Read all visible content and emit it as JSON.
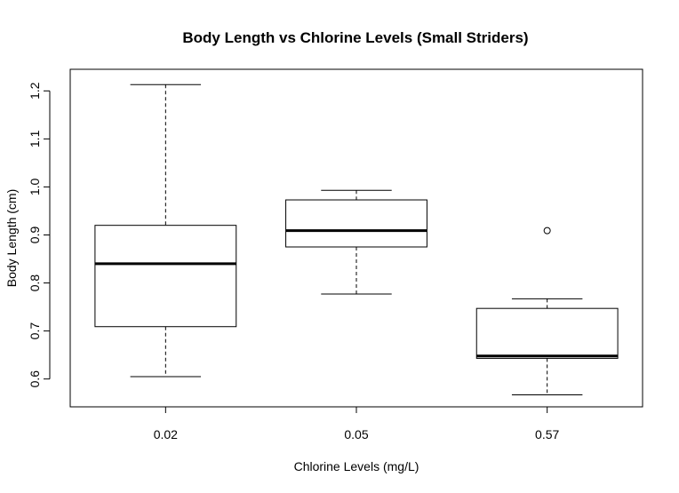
{
  "chart_data": {
    "type": "box",
    "title": "Body Length vs Chlorine Levels (Small Striders)",
    "xlabel": "Chlorine Levels (mg/L)",
    "ylabel": "Body Length (cm)",
    "categories": [
      "0.02",
      "0.05",
      "0.57"
    ],
    "y_ticks": [
      0.6,
      0.7,
      0.8,
      0.9,
      1.0,
      1.1,
      1.2
    ],
    "y_tick_labels": [
      "0.6",
      "0.7",
      "0.8",
      "0.9",
      "1.0",
      "1.1",
      "1.2"
    ],
    "ylim": [
      0.542,
      1.245
    ],
    "boxes": [
      {
        "category": "0.02",
        "whisker_low": 0.605,
        "q1": 0.709,
        "median": 0.84,
        "q3": 0.92,
        "whisker_high": 1.213,
        "outliers": []
      },
      {
        "category": "0.05",
        "whisker_low": 0.777,
        "q1": 0.875,
        "median": 0.909,
        "q3": 0.973,
        "whisker_high": 0.993,
        "outliers": []
      },
      {
        "category": "0.57",
        "whisker_low": 0.567,
        "q1": 0.643,
        "median": 0.648,
        "q3": 0.747,
        "whisker_high": 0.767,
        "outliers": [
          0.909
        ]
      }
    ],
    "grid": false,
    "legend": "none"
  }
}
